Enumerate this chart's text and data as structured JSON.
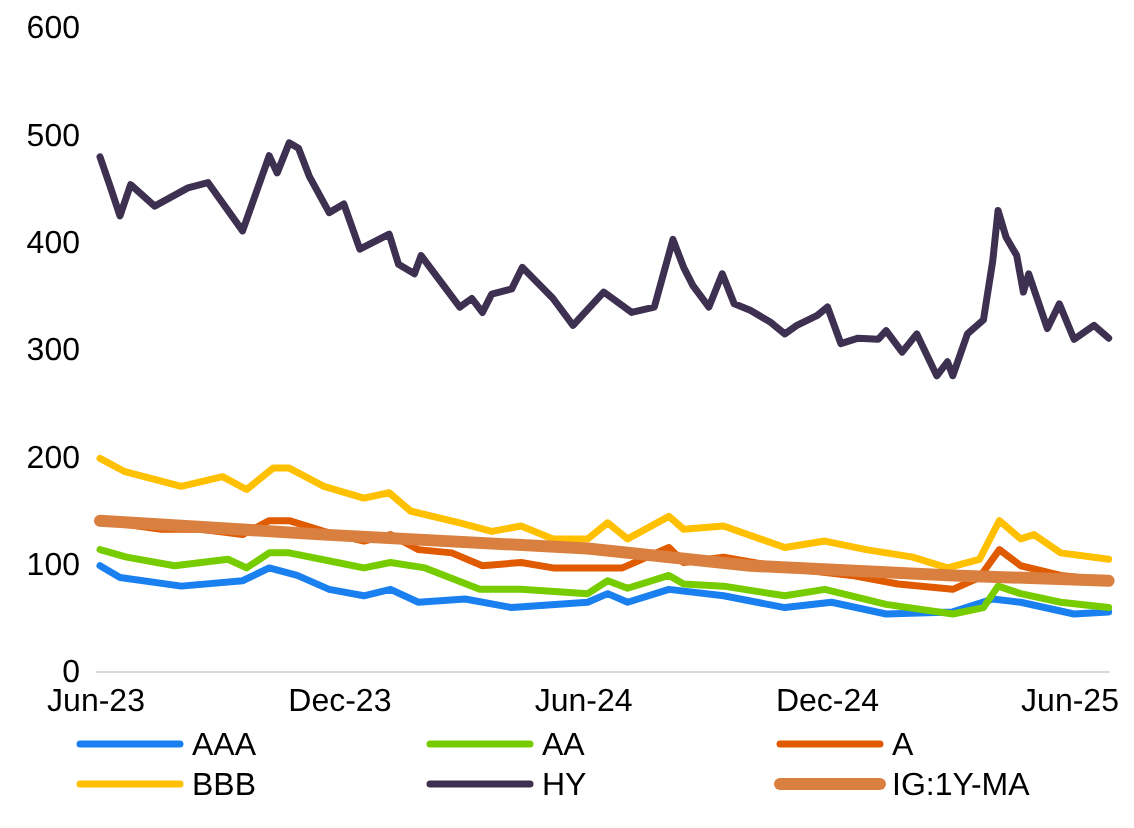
{
  "chart_data": {
    "type": "line",
    "xlim": [
      "2023-06-01",
      "2025-07-01"
    ],
    "xticks": [
      {
        "value": "2023-06-01",
        "label": "Jun-23"
      },
      {
        "value": "2023-12-01",
        "label": "Dec-23"
      },
      {
        "value": "2024-06-01",
        "label": "Jun-24"
      },
      {
        "value": "2024-12-01",
        "label": "Dec-24"
      },
      {
        "value": "2025-06-01",
        "label": "Jun-25"
      }
    ],
    "ylim": [
      0,
      600
    ],
    "yticks": [
      0,
      100,
      200,
      300,
      400,
      500,
      600
    ],
    "grid": false,
    "legend": "bottom",
    "marker": "none",
    "line_style": "solid",
    "series": [
      {
        "name": "AAA",
        "color": "#1a80f0",
        "x": [
          "2023-06-04",
          "2023-06-19",
          "2023-08-04",
          "2023-09-19",
          "2023-10-09",
          "2023-10-30",
          "2023-11-23",
          "2023-12-19",
          "2024-01-08",
          "2024-01-29",
          "2024-03-04",
          "2024-04-08",
          "2024-06-04",
          "2024-06-19",
          "2024-07-04",
          "2024-08-04",
          "2024-09-14",
          "2024-10-30",
          "2024-12-04",
          "2025-01-14",
          "2025-03-05",
          "2025-04-04",
          "2025-04-25",
          "2025-06-04",
          "2025-06-30"
        ],
        "values": [
          99,
          88,
          80,
          85,
          97,
          90,
          77,
          71,
          77,
          65,
          68,
          60,
          65,
          73,
          65,
          77,
          71,
          60,
          65,
          54,
          56,
          68,
          65,
          54,
          56
        ]
      },
      {
        "name": "AA",
        "color": "#77cc00",
        "x": [
          "2023-06-04",
          "2023-06-24",
          "2023-07-30",
          "2023-09-08",
          "2023-09-22",
          "2023-10-09",
          "2023-10-24",
          "2023-11-29",
          "2023-12-19",
          "2024-01-08",
          "2024-02-03",
          "2024-03-15",
          "2024-04-15",
          "2024-06-04",
          "2024-06-19",
          "2024-07-04",
          "2024-08-04",
          "2024-08-15",
          "2024-09-14",
          "2024-10-30",
          "2024-11-29",
          "2025-01-14",
          "2025-03-05",
          "2025-03-28",
          "2025-04-08",
          "2025-04-25",
          "2025-05-25",
          "2025-06-30"
        ],
        "values": [
          114,
          107,
          99,
          105,
          97,
          111,
          111,
          102,
          97,
          102,
          97,
          77,
          77,
          73,
          85,
          78,
          90,
          82,
          80,
          71,
          77,
          63,
          54,
          60,
          80,
          73,
          65,
          60
        ]
      },
      {
        "name": "A",
        "color": "#e05a00",
        "x": [
          "2023-06-04",
          "2023-07-20",
          "2023-08-19",
          "2023-09-19",
          "2023-10-09",
          "2023-10-24",
          "2023-11-19",
          "2023-12-19",
          "2024-01-08",
          "2024-01-29",
          "2024-02-23",
          "2024-03-17",
          "2024-04-15",
          "2024-05-09",
          "2024-06-04",
          "2024-06-30",
          "2024-08-04",
          "2024-08-15",
          "2024-09-14",
          "2024-10-30",
          "2024-12-19",
          "2025-01-23",
          "2025-03-05",
          "2025-03-25",
          "2025-04-09",
          "2025-04-25",
          "2025-05-25",
          "2025-06-30"
        ],
        "values": [
          141,
          133,
          133,
          128,
          141,
          141,
          131,
          122,
          128,
          114,
          111,
          99,
          102,
          97,
          97,
          97,
          116,
          102,
          107,
          97,
          90,
          82,
          77,
          88,
          114,
          99,
          90,
          85
        ]
      },
      {
        "name": "BBB",
        "color": "#ffc000",
        "x": [
          "2023-06-04",
          "2023-06-22",
          "2023-08-04",
          "2023-09-04",
          "2023-09-22",
          "2023-10-12",
          "2023-10-24",
          "2023-11-19",
          "2023-12-19",
          "2024-01-07",
          "2024-01-23",
          "2024-02-29",
          "2024-03-24",
          "2024-04-15",
          "2024-05-09",
          "2024-06-04",
          "2024-06-19",
          "2024-07-04",
          "2024-08-04",
          "2024-08-15",
          "2024-09-14",
          "2024-10-30",
          "2024-11-29",
          "2024-12-30",
          "2025-02-03",
          "2025-03-01",
          "2025-03-25",
          "2025-04-09",
          "2025-04-25",
          "2025-05-05",
          "2025-05-25",
          "2025-06-30"
        ],
        "values": [
          199,
          187,
          173,
          182,
          170,
          190,
          190,
          173,
          162,
          167,
          150,
          139,
          131,
          136,
          124,
          124,
          139,
          124,
          145,
          133,
          136,
          116,
          122,
          114,
          107,
          97,
          105,
          141,
          124,
          128,
          111,
          105
        ]
      },
      {
        "name": "HY",
        "color": "#3e3050",
        "x": [
          "2023-06-04",
          "2023-06-12",
          "2023-06-19",
          "2023-06-27",
          "2023-07-15",
          "2023-08-09",
          "2023-08-24",
          "2023-09-19",
          "2023-10-09",
          "2023-10-15",
          "2023-10-24",
          "2023-10-31",
          "2023-11-08",
          "2023-11-23",
          "2023-12-04",
          "2023-12-16",
          "2024-01-07",
          "2024-01-14",
          "2024-01-26",
          "2024-01-31",
          "2024-02-29",
          "2024-03-09",
          "2024-03-17",
          "2024-03-24",
          "2024-04-08",
          "2024-04-16",
          "2024-05-09",
          "2024-05-24",
          "2024-06-16",
          "2024-07-07",
          "2024-07-24",
          "2024-08-07",
          "2024-08-15",
          "2024-08-22",
          "2024-09-03",
          "2024-09-13",
          "2024-09-22",
          "2024-10-04",
          "2024-10-19",
          "2024-10-30",
          "2024-11-08",
          "2024-11-23",
          "2024-12-01",
          "2024-12-11",
          "2024-12-24",
          "2025-01-08",
          "2025-01-14",
          "2025-01-26",
          "2025-02-06",
          "2025-02-21",
          "2025-03-01",
          "2025-03-05",
          "2025-03-16",
          "2025-03-28",
          "2025-04-04",
          "2025-04-08",
          "2025-04-14",
          "2025-04-22",
          "2025-04-27",
          "2025-05-01",
          "2025-05-15",
          "2025-05-24",
          "2025-06-04",
          "2025-06-19",
          "2025-06-30"
        ],
        "values": [
          480,
          451,
          425,
          454,
          434,
          451,
          456,
          411,
          481,
          465,
          493,
          488,
          462,
          428,
          436,
          394,
          408,
          380,
          371,
          388,
          340,
          348,
          335,
          352,
          357,
          377,
          348,
          323,
          354,
          335,
          340,
          403,
          377,
          360,
          340,
          371,
          343,
          337,
          326,
          315,
          323,
          332,
          340,
          306,
          311,
          310,
          318,
          298,
          315,
          276,
          289,
          276,
          315,
          328,
          383,
          430,
          405,
          388,
          354,
          371,
          320,
          343,
          310,
          323,
          311
        ]
      },
      {
        "name": "IG:1Y-MA",
        "color": "#d98040",
        "x": [
          "2023-06-04",
          "2023-11-19",
          "2024-06-04",
          "2024-10-04",
          "2025-03-05",
          "2025-06-30"
        ],
        "values": [
          141,
          128,
          115,
          99,
          90,
          85
        ]
      }
    ]
  }
}
